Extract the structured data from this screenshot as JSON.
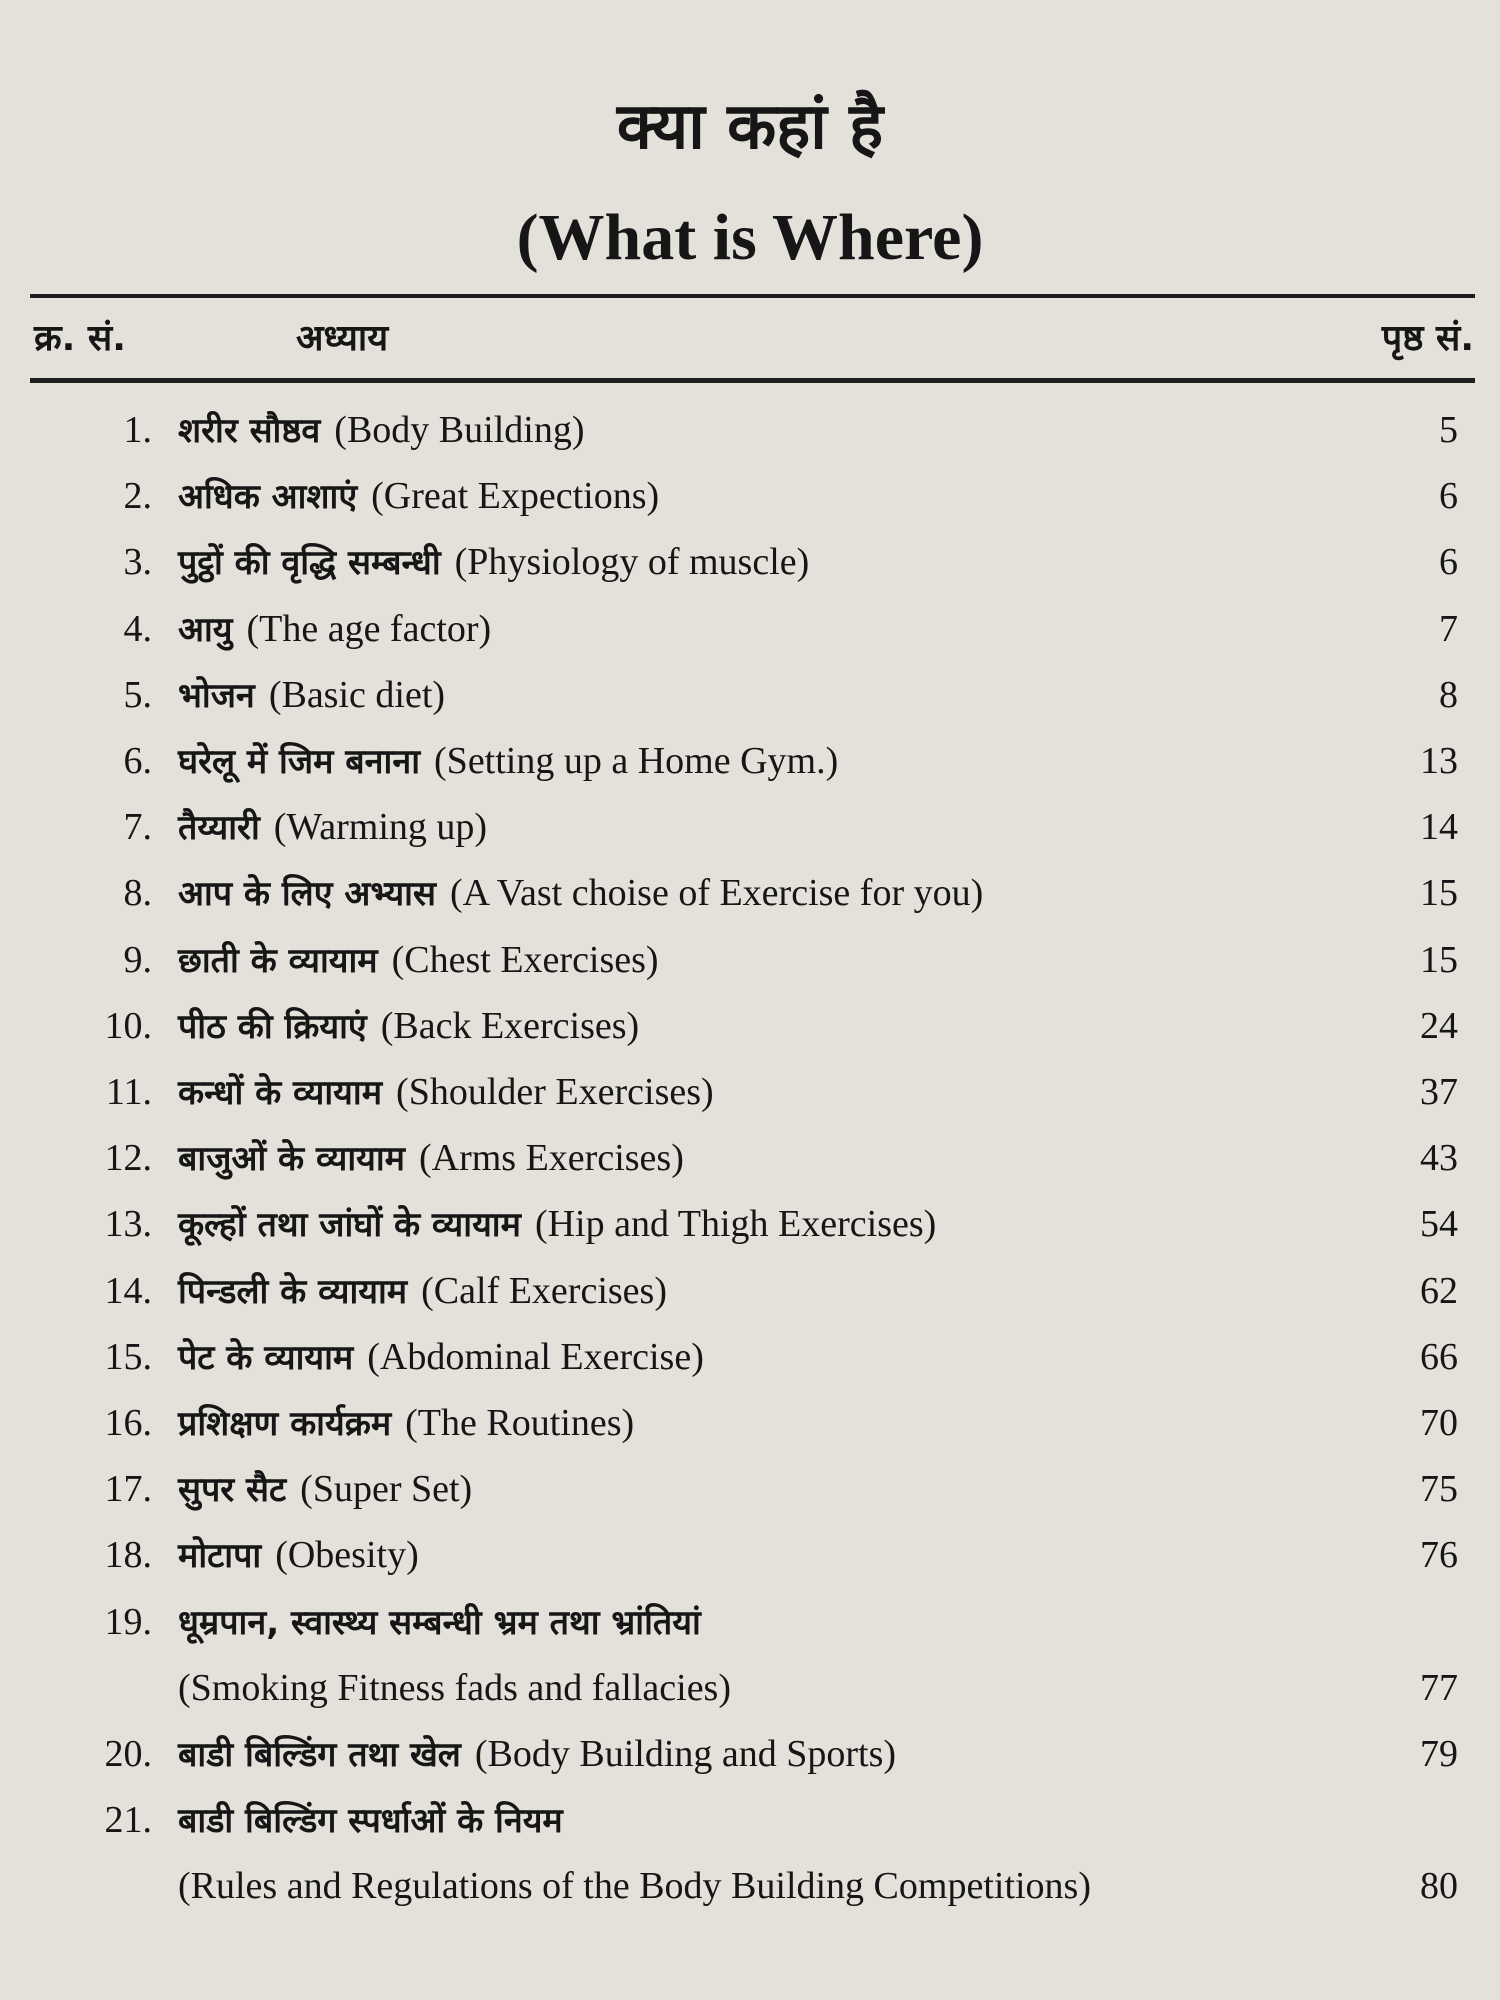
{
  "title_hindi": "क्या कहां है",
  "title_english": "(What is Where)",
  "header": {
    "serial": "क्र. सं.",
    "chapter": "अध्याय",
    "page": "पृष्ठ सं."
  },
  "entries": [
    {
      "num": "1.",
      "hindi": "शरीर सौष्ठव",
      "english": "(Body Building)",
      "page": "5"
    },
    {
      "num": "2.",
      "hindi": "अधिक आशाएं",
      "english": "(Great Expections)",
      "page": "6"
    },
    {
      "num": "3.",
      "hindi": "पुट्ठों की वृद्धि सम्बन्धी",
      "english": "(Physiology of muscle)",
      "page": "6"
    },
    {
      "num": "4.",
      "hindi": "आयु",
      "english": "(The age factor)",
      "page": "7"
    },
    {
      "num": "5.",
      "hindi": "भोजन",
      "english": "(Basic diet)",
      "page": "8"
    },
    {
      "num": "6.",
      "hindi": "घरेलू में जिम बनाना",
      "english": "(Setting up a Home Gym.)",
      "page": "13"
    },
    {
      "num": "7.",
      "hindi": "तैय्यारी",
      "english": "(Warming up)",
      "page": "14"
    },
    {
      "num": "8.",
      "hindi": "आप के लिए अभ्यास",
      "english": "(A Vast choise of Exercise for you)",
      "page": "15"
    },
    {
      "num": "9.",
      "hindi": "छाती के व्यायाम",
      "english": "(Chest Exercises)",
      "page": "15"
    },
    {
      "num": "10.",
      "hindi": "पीठ की क्रियाएं",
      "english": "(Back Exercises)",
      "page": "24"
    },
    {
      "num": "11.",
      "hindi": "कन्धों के व्यायाम",
      "english": "(Shoulder Exercises)",
      "page": "37"
    },
    {
      "num": "12.",
      "hindi": "बाजुओं के व्यायाम",
      "english": "(Arms Exercises)",
      "page": "43"
    },
    {
      "num": "13.",
      "hindi": "कूल्हों तथा जांघों के व्यायाम",
      "english": "(Hip and Thigh Exercises)",
      "page": "54"
    },
    {
      "num": "14.",
      "hindi": "पिन्डली के व्यायाम",
      "english": "(Calf Exercises)",
      "page": "62"
    },
    {
      "num": "15.",
      "hindi": "पेट के व्यायाम",
      "english": "(Abdominal Exercise)",
      "page": "66"
    },
    {
      "num": "16.",
      "hindi": "प्रशिक्षण कार्यक्रम",
      "english": "(The Routines)",
      "page": "70"
    },
    {
      "num": "17.",
      "hindi": "सुपर सैट",
      "english": "(Super Set)",
      "page": "75"
    },
    {
      "num": "18.",
      "hindi": "मोटापा",
      "english": "(Obesity)",
      "page": "76"
    },
    {
      "num": "19.",
      "hindi": "धूम्रपान, स्वास्थ्य सम्बन्धी भ्रम तथा भ्रांतियां",
      "english": "(Smoking Fitness fads and fallacies)",
      "page": "77",
      "wrap": true
    },
    {
      "num": "20.",
      "hindi": "बाडी बिल्डिंग तथा खेल",
      "english": "(Body Building and Sports)",
      "page": "79"
    },
    {
      "num": "21.",
      "hindi": "बाडी बिल्डिंग स्पर्धाओं के नियम",
      "english": "(Rules and Regulations of the Body Building Competitions)",
      "page": "80",
      "wrap": true
    }
  ]
}
